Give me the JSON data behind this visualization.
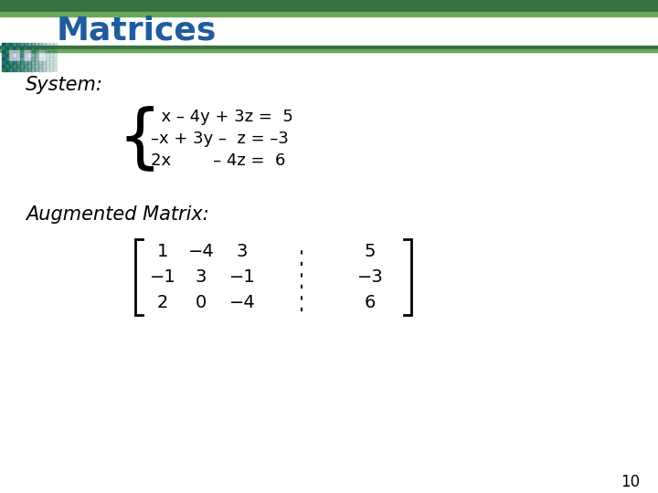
{
  "title": "Matrices",
  "title_color": "#1F5C9E",
  "title_fontsize": 26,
  "bg_color": "#FFFFFF",
  "bar_dark_green": "#3A7040",
  "bar_light_green": "#6AAA5A",
  "section_label_system": "System:",
  "section_label_augmented": "Augmented Matrix:",
  "section_fontsize": 15,
  "eq_line1": "  x – 4y + 3z =  5",
  "eq_line2": "–x + 3y –  z = –3",
  "eq_line3": "2x        – 4z =  6",
  "eq_fontsize": 13,
  "matrix_rows": [
    [
      "1",
      "−4",
      "3",
      "5"
    ],
    [
      "−1",
      "3",
      "−1",
      "−3"
    ],
    [
      "2",
      "0",
      "−4",
      "6"
    ]
  ],
  "mat_fontsize": 14,
  "page_number": "10",
  "page_fontsize": 12
}
